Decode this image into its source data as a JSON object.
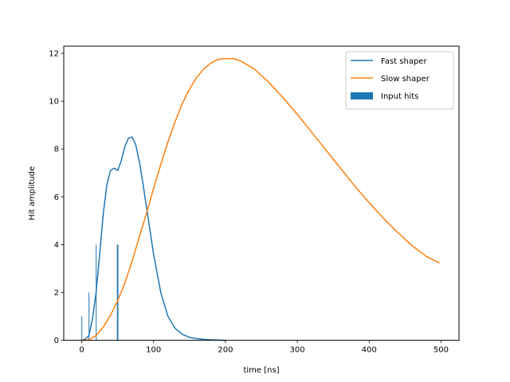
{
  "chart_data": {
    "type": "line",
    "title": "",
    "xlabel": "time [ns]",
    "ylabel": "Hit amplitude",
    "xlim": [
      -25,
      525
    ],
    "ylim": [
      0,
      12.3
    ],
    "xticks": [
      0,
      100,
      200,
      300,
      400,
      500
    ],
    "yticks": [
      0,
      2,
      4,
      6,
      8,
      10,
      12
    ],
    "grid": false,
    "legend_position": "top-right",
    "series": [
      {
        "name": "Fast shaper",
        "type": "line",
        "color": "#1f77b4",
        "x": [
          0,
          5,
          10,
          15,
          20,
          25,
          30,
          35,
          40,
          45,
          50,
          55,
          60,
          65,
          70,
          75,
          80,
          85,
          90,
          95,
          100,
          110,
          120,
          130,
          140,
          150,
          160,
          170,
          180,
          190,
          200
        ],
        "y": [
          0,
          0.05,
          0.2,
          0.9,
          2.0,
          3.6,
          5.3,
          6.5,
          7.1,
          7.2,
          7.1,
          7.5,
          8.1,
          8.45,
          8.5,
          8.2,
          7.5,
          6.6,
          5.6,
          4.6,
          3.6,
          2.0,
          1.0,
          0.5,
          0.25,
          0.12,
          0.07,
          0.04,
          0.02,
          0.01,
          0.0
        ]
      },
      {
        "name": "Slow shaper",
        "type": "line",
        "color": "#ff7f0e",
        "x": [
          0,
          10,
          20,
          30,
          40,
          50,
          60,
          70,
          80,
          90,
          100,
          110,
          120,
          130,
          140,
          150,
          160,
          170,
          180,
          190,
          200,
          210,
          220,
          240,
          260,
          280,
          300,
          320,
          340,
          360,
          380,
          400,
          420,
          440,
          460,
          480,
          497
        ],
        "y": [
          0,
          0.02,
          0.2,
          0.55,
          1.05,
          1.65,
          2.4,
          3.3,
          4.3,
          5.3,
          6.35,
          7.35,
          8.3,
          9.15,
          9.9,
          10.5,
          11.0,
          11.35,
          11.6,
          11.75,
          11.78,
          11.78,
          11.7,
          11.35,
          10.8,
          10.15,
          9.45,
          8.7,
          7.95,
          7.2,
          6.45,
          5.75,
          5.1,
          4.5,
          3.95,
          3.5,
          3.25
        ]
      },
      {
        "name": "Input hits",
        "type": "bar",
        "color": "#1f77b4",
        "x": [
          0,
          10,
          20,
          50
        ],
        "y": [
          1,
          2,
          4,
          4
        ],
        "width_ns": [
          0.8,
          0.8,
          0.8,
          2.0
        ]
      }
    ]
  }
}
